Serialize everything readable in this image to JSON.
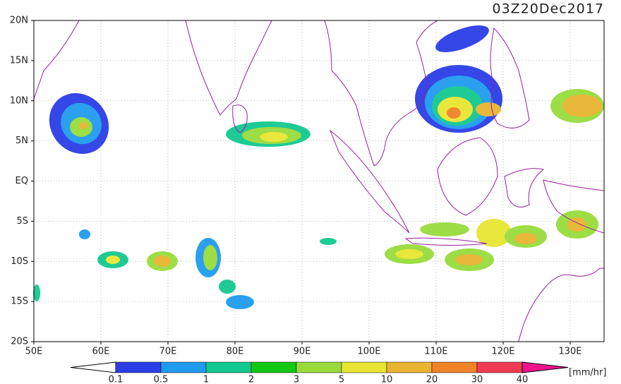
{
  "timestamp": "03Z20Dec2017",
  "map": {
    "lat_labels": [
      "20N",
      "15N",
      "10N",
      "5N",
      "EQ",
      "5S",
      "10S",
      "15S",
      "20S"
    ],
    "lon_labels": [
      "50E",
      "60E",
      "70E",
      "80E",
      "90E",
      "100E",
      "110E",
      "120E",
      "130E"
    ]
  },
  "colorbar": {
    "labels": [
      "0.1",
      "0.5",
      "1",
      "2",
      "3",
      "5",
      "10",
      "20",
      "30",
      "40"
    ],
    "colors": [
      "#ffffff",
      "#2b3ee6",
      "#1f9bef",
      "#12c98f",
      "#12c812",
      "#98dc3c",
      "#e8e632",
      "#e8b432",
      "#f08228",
      "#f03c50",
      "#f0148c"
    ],
    "unit": "[mm/hr]"
  }
}
